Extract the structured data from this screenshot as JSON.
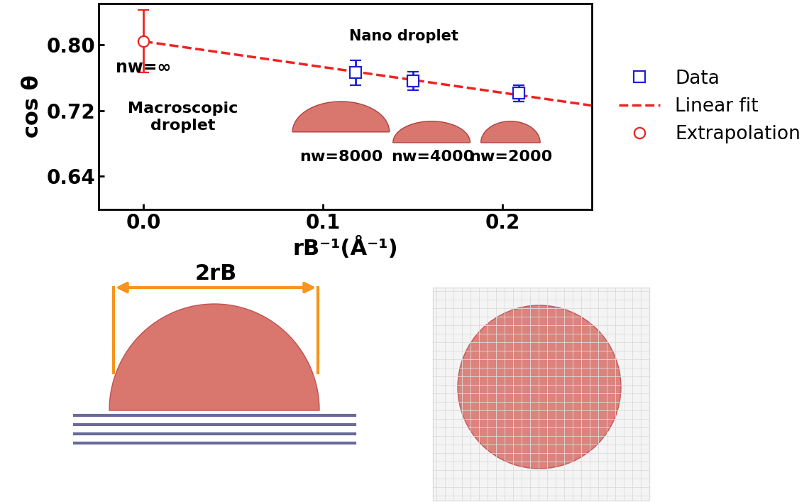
{
  "chart_data": {
    "type": "scatter",
    "xlabel": "rB⁻¹(Å⁻¹)",
    "ylabel": "cos θ",
    "xlim": [
      -0.025,
      0.25
    ],
    "ylim": [
      0.6,
      0.85
    ],
    "xticks": [
      0.0,
      0.1,
      0.2
    ],
    "yticks": [
      {
        "value": 0.64,
        "label": "0.64"
      },
      {
        "value": 0.72,
        "label": "0.72"
      },
      {
        "value": 0.8,
        "label": "0.80"
      }
    ],
    "legend": "center left",
    "series": [
      {
        "name": "Data",
        "type": "scatter",
        "color": "#1f1fd0",
        "marker": "square",
        "x": [
          0.118,
          0.15,
          0.209
        ],
        "values": [
          0.766,
          0.756,
          0.741
        ],
        "errors": [
          0.015,
          0.011,
          0.01
        ]
      },
      {
        "name": "Linear fit",
        "type": "line",
        "color": "#ee2222",
        "line_style": "dashed",
        "x": [
          0.0,
          0.25
        ],
        "values": [
          0.804,
          0.726
        ]
      },
      {
        "name": "Extrapolation",
        "type": "scatter",
        "color": "#ee2222",
        "marker": "circle",
        "x": [
          0.0
        ],
        "values": [
          0.804
        ],
        "errors": [
          0.038
        ]
      }
    ],
    "annotations": [
      "Nano droplet",
      "nw=∞",
      "Macroscopic\ndroplet",
      "nw=8000",
      "nw=4000",
      "nw=2000"
    ],
    "schematic_label": "2rB"
  }
}
